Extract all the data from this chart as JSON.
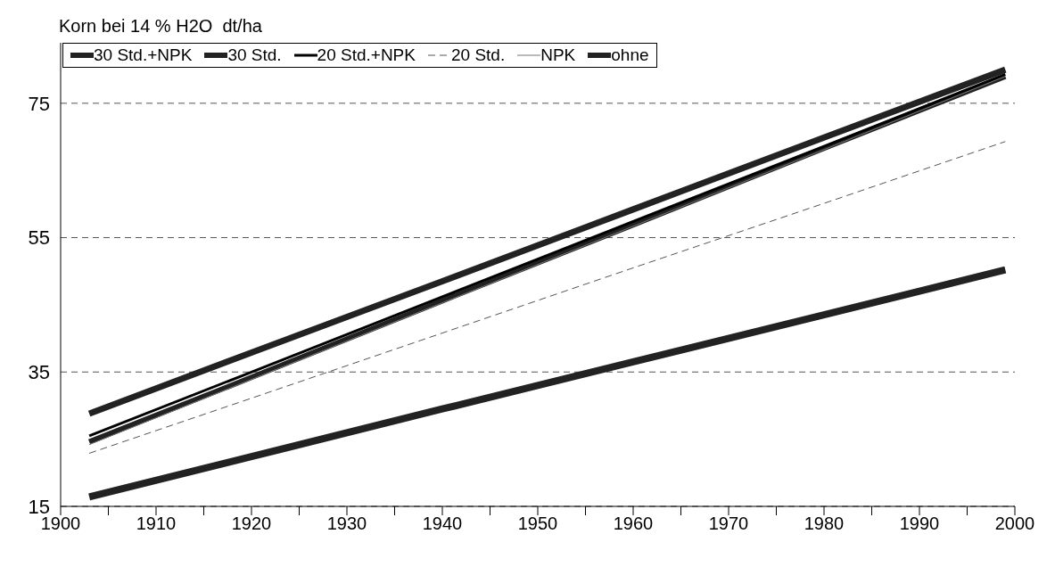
{
  "chart_data": {
    "type": "line",
    "ylabel": "Korn bei 14 % H2O  dt/ha",
    "x": [
      1903,
      1920,
      1940,
      1960,
      1980,
      1999
    ],
    "series": [
      {
        "name": "30 Std.+NPK",
        "color": "#222222",
        "values": [
          28.8,
          37.9,
          48.5,
          59.2,
          69.9,
          80.0
        ]
      },
      {
        "name": "30 Std.",
        "color": "#222222",
        "values": [
          24.6,
          34.2,
          45.6,
          56.9,
          68.3,
          79.0
        ]
      },
      {
        "name": "20 Std.+NPK",
        "color": "#000000",
        "values": [
          25.5,
          35.0,
          46.2,
          57.4,
          68.6,
          79.3
        ]
      },
      {
        "name": "20 Std.",
        "color": "#555555",
        "line_style": "dashed",
        "values": [
          22.9,
          31.1,
          40.8,
          50.5,
          60.1,
          69.3
        ]
      },
      {
        "name": "NPK",
        "color": "#777777",
        "values": [
          24.2,
          33.9,
          45.3,
          56.7,
          68.1,
          79.0
        ]
      },
      {
        "name": "ohne",
        "color": "#222222",
        "values": [
          16.4,
          22.4,
          29.5,
          36.5,
          43.5,
          50.2
        ]
      }
    ],
    "xlim": [
      1900,
      2000
    ],
    "xticks": [
      1900,
      {
        "value": 1905,
        "label": null
      },
      1910,
      {
        "value": 1915,
        "label": null
      },
      1920,
      {
        "value": 1925,
        "label": null
      },
      1930,
      {
        "value": 1935,
        "label": null
      },
      1940,
      {
        "value": 1945,
        "label": null
      },
      1950,
      {
        "value": 1955,
        "label": null
      },
      1960,
      {
        "value": 1965,
        "label": null
      },
      1970,
      {
        "value": 1975,
        "label": null
      },
      1980,
      {
        "value": 1985,
        "label": null
      },
      1990,
      {
        "value": 1995,
        "label": null
      },
      2000
    ],
    "ylim": [
      15,
      84
    ],
    "yticks": [
      15,
      35,
      55,
      75
    ],
    "grid": "y",
    "legend": "top left",
    "marker": "none",
    "line_style": "solid"
  }
}
